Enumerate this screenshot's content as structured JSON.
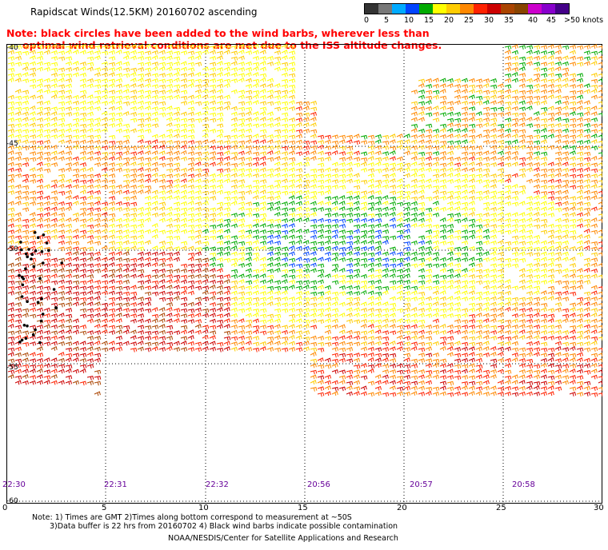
{
  "title": "Rapidscat Winds(12.5KM) 20160702 ascending",
  "note": {
    "line1": "Note: black circles have been added to the wind barbs, wherever less than",
    "line2": "optimal wind retrieval conditions are met due to the ISS altitude changes."
  },
  "legend": {
    "labels": [
      "0",
      "5",
      "10",
      "15",
      "20",
      "25",
      "30",
      "35",
      "40",
      "45",
      ">50 knots"
    ],
    "colors": [
      "#333333",
      "#777777",
      "#00aaff",
      "#0044ff",
      "#00aa00",
      "#ffff00",
      "#ffcc00",
      "#ff8800",
      "#ff2200",
      "#cc0000",
      "#aa4400",
      "#884400",
      "#cc00cc",
      "#8800cc",
      "#440088"
    ]
  },
  "lat_labels": [
    "40",
    "45",
    "50",
    "55",
    "60"
  ],
  "lat_prefix": "-",
  "time_labels": [
    "22:30",
    "22:31",
    "22:32",
    "20:56",
    "20:57",
    "20:58"
  ],
  "x_ticks": [
    "0",
    "5",
    "10",
    "15",
    "20",
    "25",
    "30"
  ],
  "footnotes": {
    "line1": "Note: 1) Times are GMT 2)Times along bottom correspond to measurement at ~50S",
    "line2": "3)Data buffer is 22 hrs from 20160702 4) Black wind barbs indicate possible contamination"
  },
  "credit": "NOAA/NESDIS/Center for Satellite Applications and Research"
}
